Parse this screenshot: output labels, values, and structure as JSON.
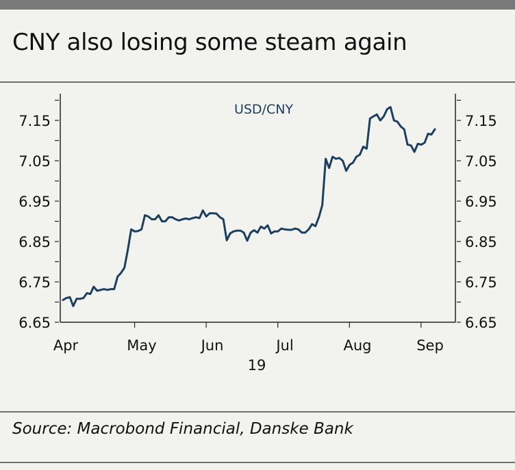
{
  "title": "CNY also losing some steam again",
  "source": "Source: Macrobond Financial, Danske Bank",
  "colors": {
    "line": "#1b3f5e",
    "axis": "#222222",
    "background": "#f2f2ef",
    "rule": "#6e6e6e"
  },
  "chart_data": {
    "type": "line",
    "title": "CNY also losing some steam again",
    "xlabel": "",
    "ylabel": "",
    "year_label": "19",
    "x_tick_labels": [
      "Apr",
      "May",
      "Jun",
      "Jul",
      "Aug",
      "Sep"
    ],
    "y_tick_labels": [
      "7.15",
      "7.05",
      "6.95",
      "6.85",
      "6.75",
      "6.65"
    ],
    "y_ticks": [
      7.15,
      7.05,
      6.95,
      6.85,
      6.75,
      6.65
    ],
    "ylim": [
      6.65,
      7.2
    ],
    "grid": false,
    "legend_position": "top-center",
    "series": [
      {
        "name": "USD/CNY",
        "color": "#1b3f5e",
        "values": [
          6.705,
          6.71,
          6.712,
          6.69,
          6.708,
          6.708,
          6.71,
          6.722,
          6.72,
          6.738,
          6.728,
          6.73,
          6.732,
          6.73,
          6.732,
          6.732,
          6.763,
          6.772,
          6.785,
          6.83,
          6.88,
          6.875,
          6.876,
          6.88,
          6.915,
          6.912,
          6.905,
          6.905,
          6.915,
          6.9,
          6.9,
          6.91,
          6.91,
          6.905,
          6.902,
          6.905,
          6.907,
          6.905,
          6.908,
          6.91,
          6.908,
          6.927,
          6.912,
          6.92,
          6.92,
          6.919,
          6.91,
          6.905,
          6.853,
          6.87,
          6.875,
          6.877,
          6.877,
          6.872,
          6.852,
          6.872,
          6.878,
          6.872,
          6.887,
          6.882,
          6.89,
          6.87,
          6.875,
          6.875,
          6.882,
          6.88,
          6.879,
          6.879,
          6.882,
          6.88,
          6.872,
          6.872,
          6.88,
          6.893,
          6.888,
          6.91,
          6.94,
          7.055,
          7.032,
          7.06,
          7.055,
          7.057,
          7.05,
          7.025,
          7.04,
          7.045,
          7.06,
          7.065,
          7.085,
          7.08,
          7.155,
          7.16,
          7.165,
          7.15,
          7.16,
          7.178,
          7.183,
          7.15,
          7.147,
          7.135,
          7.128,
          7.09,
          7.088,
          7.072,
          7.092,
          7.09,
          7.095,
          7.117,
          7.115,
          7.128
        ]
      }
    ]
  }
}
